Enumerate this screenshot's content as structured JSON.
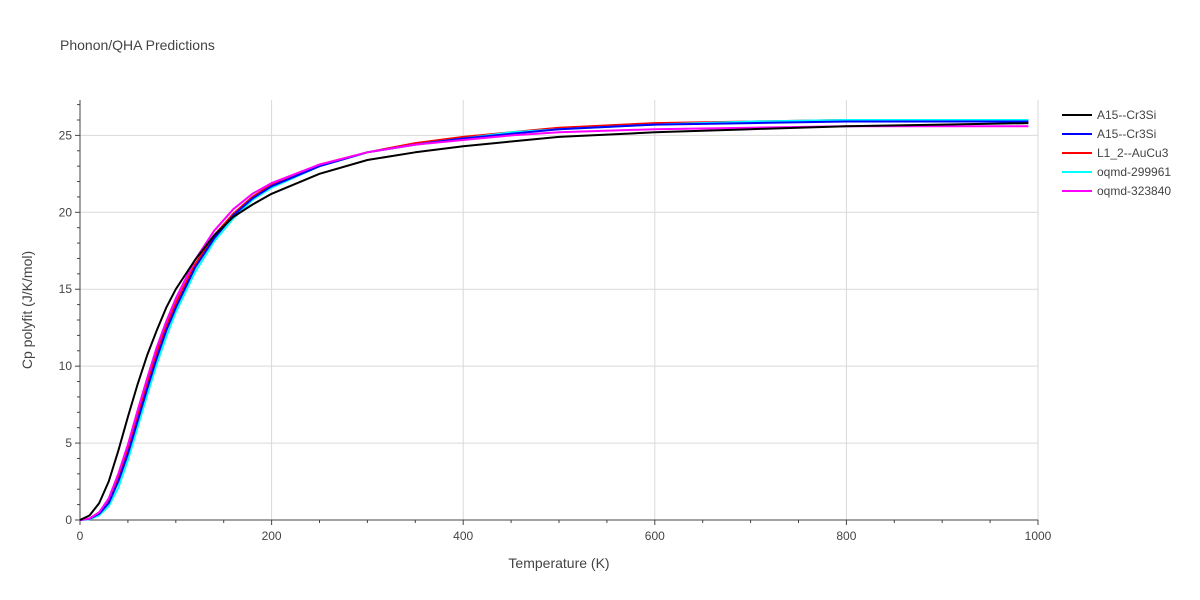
{
  "chart_data": {
    "type": "line",
    "title": "Phonon/QHA Predictions",
    "xlabel": "Temperature (K)",
    "ylabel": "Cp polyfit (J/K/mol)",
    "xlim": [
      0,
      1000
    ],
    "ylim": [
      0,
      27.3
    ],
    "xticks": [
      0,
      200,
      400,
      600,
      800,
      1000
    ],
    "yticks": [
      0,
      5,
      10,
      15,
      20,
      25
    ],
    "grid": true,
    "legend_position": "top-right",
    "series": [
      {
        "name": "L1_2--AuCu3",
        "color": "#ff0000",
        "x": [
          0,
          10,
          20,
          30,
          40,
          50,
          60,
          70,
          80,
          90,
          100,
          120,
          140,
          160,
          180,
          200,
          250,
          300,
          350,
          400,
          450,
          500,
          600,
          700,
          800,
          900,
          990
        ],
        "y": [
          0,
          0.1,
          0.5,
          1.3,
          2.8,
          4.6,
          6.8,
          8.9,
          10.9,
          12.6,
          14.1,
          16.6,
          18.5,
          19.9,
          21.0,
          21.8,
          23.1,
          23.9,
          24.5,
          24.9,
          25.2,
          25.5,
          25.8,
          25.9,
          26.0,
          26.0,
          26.0
        ]
      },
      {
        "name": "oqmd-299961",
        "color": "#00ffff",
        "x": [
          0,
          10,
          20,
          30,
          40,
          50,
          60,
          70,
          80,
          90,
          100,
          120,
          140,
          160,
          180,
          200,
          250,
          300,
          350,
          400,
          450,
          500,
          600,
          700,
          800,
          900,
          990
        ],
        "y": [
          0,
          0.05,
          0.3,
          0.9,
          2.1,
          3.9,
          6.0,
          8.1,
          10.1,
          11.9,
          13.5,
          16.1,
          18.1,
          19.6,
          20.8,
          21.6,
          23.0,
          23.9,
          24.4,
          24.8,
          25.2,
          25.4,
          25.7,
          25.9,
          26.0,
          26.0,
          26.0
        ]
      },
      {
        "name": "A15--Cr3Si",
        "color": "#0000ff",
        "x": [
          0,
          10,
          20,
          30,
          40,
          50,
          60,
          70,
          80,
          90,
          100,
          120,
          140,
          160,
          180,
          200,
          250,
          300,
          350,
          400,
          450,
          500,
          600,
          700,
          800,
          900,
          990
        ],
        "y": [
          0,
          0.08,
          0.4,
          1.1,
          2.5,
          4.3,
          6.4,
          8.5,
          10.5,
          12.3,
          13.8,
          16.4,
          18.3,
          19.8,
          20.9,
          21.7,
          23.0,
          23.9,
          24.4,
          24.8,
          25.1,
          25.4,
          25.7,
          25.8,
          25.9,
          25.9,
          25.9
        ]
      },
      {
        "name": "oqmd-323840",
        "color": "#ff00ff",
        "x": [
          0,
          10,
          20,
          30,
          40,
          50,
          60,
          70,
          80,
          90,
          100,
          120,
          140,
          160,
          180,
          200,
          250,
          300,
          350,
          400,
          450,
          500,
          600,
          700,
          800,
          900,
          990
        ],
        "y": [
          0,
          0.1,
          0.5,
          1.4,
          3.0,
          4.9,
          7.1,
          9.2,
          11.2,
          12.9,
          14.4,
          16.9,
          18.8,
          20.2,
          21.2,
          21.9,
          23.1,
          23.9,
          24.4,
          24.7,
          25.0,
          25.2,
          25.4,
          25.5,
          25.6,
          25.6,
          25.6
        ]
      },
      {
        "name": "A15--Cr3Si",
        "color": "#000000",
        "x": [
          0,
          10,
          20,
          30,
          40,
          50,
          60,
          70,
          80,
          90,
          100,
          120,
          140,
          160,
          180,
          200,
          250,
          300,
          350,
          400,
          450,
          500,
          600,
          700,
          800,
          900,
          990
        ],
        "y": [
          0,
          0.3,
          1.1,
          2.5,
          4.5,
          6.7,
          8.8,
          10.7,
          12.3,
          13.8,
          15.0,
          16.9,
          18.5,
          19.7,
          20.5,
          21.2,
          22.5,
          23.4,
          23.9,
          24.3,
          24.6,
          24.9,
          25.2,
          25.4,
          25.6,
          25.7,
          25.8
        ]
      }
    ],
    "legend_order": [
      4,
      2,
      0,
      1,
      3
    ]
  }
}
